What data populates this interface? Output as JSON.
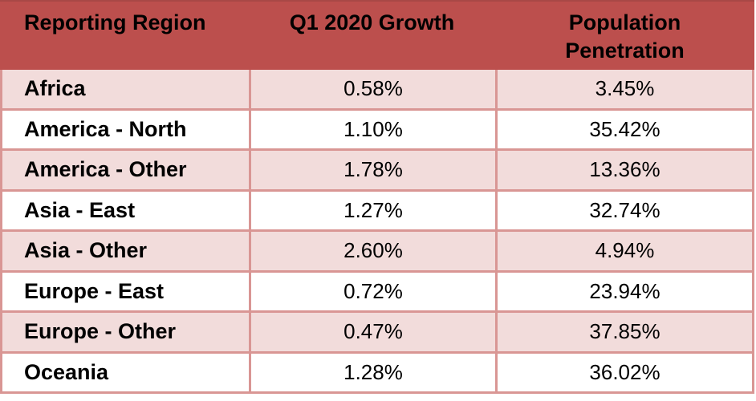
{
  "colors": {
    "header_bg": "#bc4f4d",
    "header_top_edge": "#a84846",
    "row_alt_bg": "#f2dcdb",
    "row_bg": "#ffffff",
    "border": "#d99694",
    "text": "#000000"
  },
  "table": {
    "columns": [
      "Reporting Region",
      "Q1 2020 Growth",
      "Population Penetration"
    ],
    "rows": [
      {
        "region": "Africa",
        "growth": "0.58%",
        "penetration": "3.45%"
      },
      {
        "region": "America - North",
        "growth": "1.10%",
        "penetration": "35.42%"
      },
      {
        "region": "America - Other",
        "growth": "1.78%",
        "penetration": "13.36%"
      },
      {
        "region": "Asia - East",
        "growth": "1.27%",
        "penetration": "32.74%"
      },
      {
        "region": "Asia - Other",
        "growth": "2.60%",
        "penetration": "4.94%"
      },
      {
        "region": "Europe - East",
        "growth": "0.72%",
        "penetration": "23.94%"
      },
      {
        "region": "Europe - Other",
        "growth": "0.47%",
        "penetration": "37.85%"
      },
      {
        "region": "Oceania",
        "growth": "1.28%",
        "penetration": "36.02%"
      }
    ]
  },
  "chart_data": {
    "type": "table",
    "title": "",
    "columns": [
      "Reporting Region",
      "Q1 2020 Growth",
      "Population Penetration"
    ],
    "rows": [
      [
        "Africa",
        "0.58%",
        "3.45%"
      ],
      [
        "America - North",
        "1.10%",
        "35.42%"
      ],
      [
        "America - Other",
        "1.78%",
        "13.36%"
      ],
      [
        "Asia - East",
        "1.27%",
        "32.74%"
      ],
      [
        "Asia - Other",
        "2.60%",
        "4.94%"
      ],
      [
        "Europe - East",
        "0.72%",
        "23.94%"
      ],
      [
        "Europe - Other",
        "0.47%",
        "37.85%"
      ],
      [
        "Oceania",
        "1.28%",
        "36.02%"
      ]
    ]
  }
}
